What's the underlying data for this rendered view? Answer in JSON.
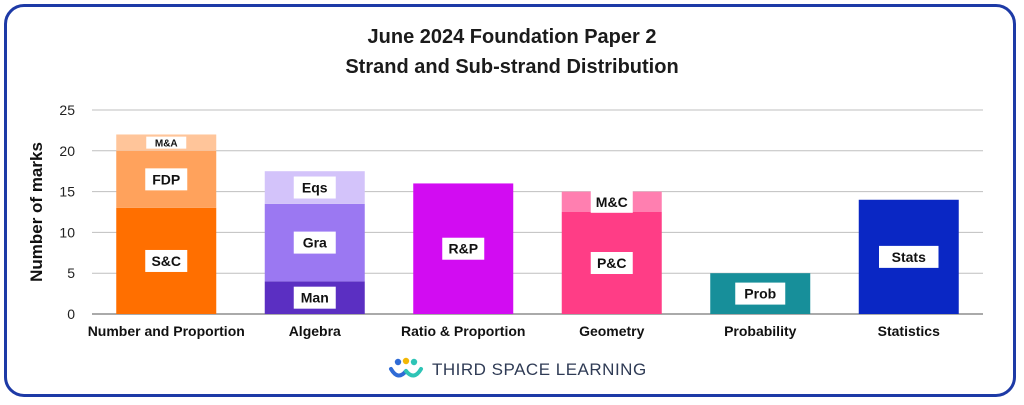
{
  "chart_data": {
    "type": "bar",
    "stacked": true,
    "title": "June 2024 Foundation Paper 2",
    "subtitle": "Strand and Sub-strand Distribution",
    "ylabel": "Number of marks",
    "xlabel": "",
    "ylim": [
      0,
      25
    ],
    "yticks": [
      "0",
      "5",
      "10",
      "15",
      "20",
      "25"
    ],
    "grid": true,
    "categories": [
      "Number and Proportion",
      "Algebra",
      "Ratio & Proportion",
      "Geometry",
      "Probability",
      "Statistics"
    ],
    "bars": [
      {
        "category": "Number and Proportion",
        "segments": [
          {
            "label": "S&C",
            "value": 13,
            "color": "#ff6f00"
          },
          {
            "label": "FDP",
            "value": 7,
            "color": "#ffa25c"
          },
          {
            "label": "M&A",
            "value": 2,
            "color": "#ffc59a"
          }
        ]
      },
      {
        "category": "Algebra",
        "segments": [
          {
            "label": "Man",
            "value": 4,
            "color": "#5b2fc2"
          },
          {
            "label": "Gra",
            "value": 9.5,
            "color": "#9b78f2"
          },
          {
            "label": "Eqs",
            "value": 4,
            "color": "#d3c3fa"
          }
        ]
      },
      {
        "category": "Ratio & Proportion",
        "segments": [
          {
            "label": "R&P",
            "value": 16,
            "color": "#d20cf2"
          }
        ]
      },
      {
        "category": "Geometry",
        "segments": [
          {
            "label": "P&C",
            "value": 12.5,
            "color": "#ff3d86"
          },
          {
            "label": "M&C",
            "value": 2.5,
            "color": "#ff7fb0"
          }
        ]
      },
      {
        "category": "Probability",
        "segments": [
          {
            "label": "Prob",
            "value": 5,
            "color": "#178f9a"
          }
        ]
      },
      {
        "category": "Statistics",
        "segments": [
          {
            "label": "Stats",
            "value": 14,
            "color": "#0a27c4"
          }
        ]
      }
    ]
  },
  "branding": {
    "name": "THIRD SPACE LEARNING"
  },
  "colors": {
    "frame": "#1d3aa6",
    "grid": "#bfbfbf",
    "axis": "#555555"
  }
}
